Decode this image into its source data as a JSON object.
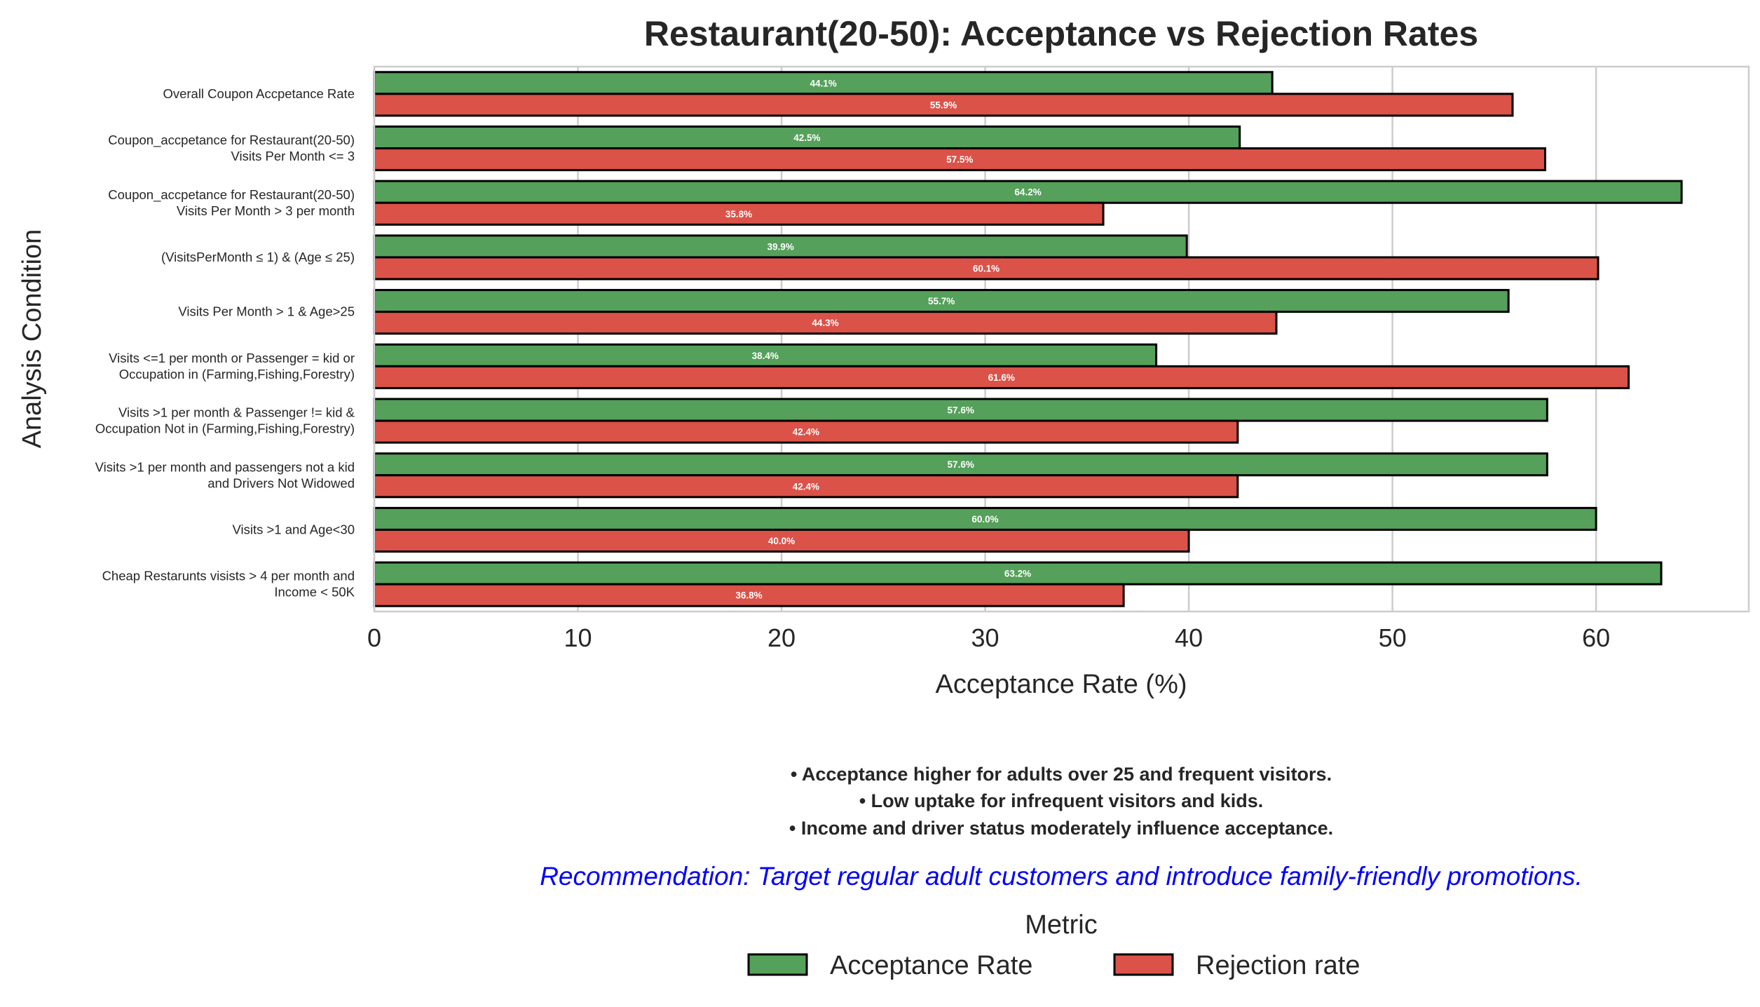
{
  "chart_data": {
    "type": "bar",
    "orientation": "horizontal",
    "title": "Restaurant(20-50): Acceptance vs Rejection Rates",
    "xlabel": "Acceptance Rate (%)",
    "ylabel": "Analysis Condition",
    "xlim": [
      0,
      67.5
    ],
    "xticks": [
      0,
      10,
      20,
      30,
      40,
      50,
      60
    ],
    "grid": true,
    "categories": [
      [
        "Overall Coupon Accpetance Rate"
      ],
      [
        "Coupon_accpetance for Restaurant(20-50)",
        "Visits Per Month <= 3"
      ],
      [
        "Coupon_accpetance for Restaurant(20-50)",
        "Visits Per Month > 3 per month"
      ],
      [
        "(VisitsPerMonth ≤ 1) & (Age ≤ 25)"
      ],
      [
        "Visits Per Month > 1 & Age>25"
      ],
      [
        "Visits <=1 per month or Passenger = kid or",
        "Occupation in (Farming,Fishing,Forestry)"
      ],
      [
        "Visits >1 per month & Passenger != kid &",
        "Occupation Not in (Farming,Fishing,Forestry)"
      ],
      [
        "Visits >1 per month and passengers not a kid",
        "and Drivers Not Widowed"
      ],
      [
        "Visits >1 and Age<30"
      ],
      [
        "Cheap Restarunts visists > 4 per month and",
        "Income < 50K"
      ]
    ],
    "series": [
      {
        "name": "Acceptance Rate",
        "color": "#55a05a",
        "values": [
          44.1,
          42.5,
          64.2,
          39.9,
          55.7,
          38.4,
          57.6,
          57.6,
          60.0,
          63.2
        ]
      },
      {
        "name": "Rejection rate",
        "color": "#db5248",
        "values": [
          55.9,
          57.5,
          35.8,
          60.1,
          44.3,
          61.6,
          42.4,
          42.4,
          40.0,
          36.8
        ]
      }
    ],
    "legend": {
      "title": "Metric",
      "placement": "bottom-center"
    }
  },
  "notes": [
    "• Acceptance higher for adults over 25 and frequent visitors.",
    "• Low uptake for infrequent visitors and kids.",
    "• Income and driver status moderately influence acceptance."
  ],
  "recommendation": "Recommendation: Target regular adult customers and introduce family-friendly promotions."
}
